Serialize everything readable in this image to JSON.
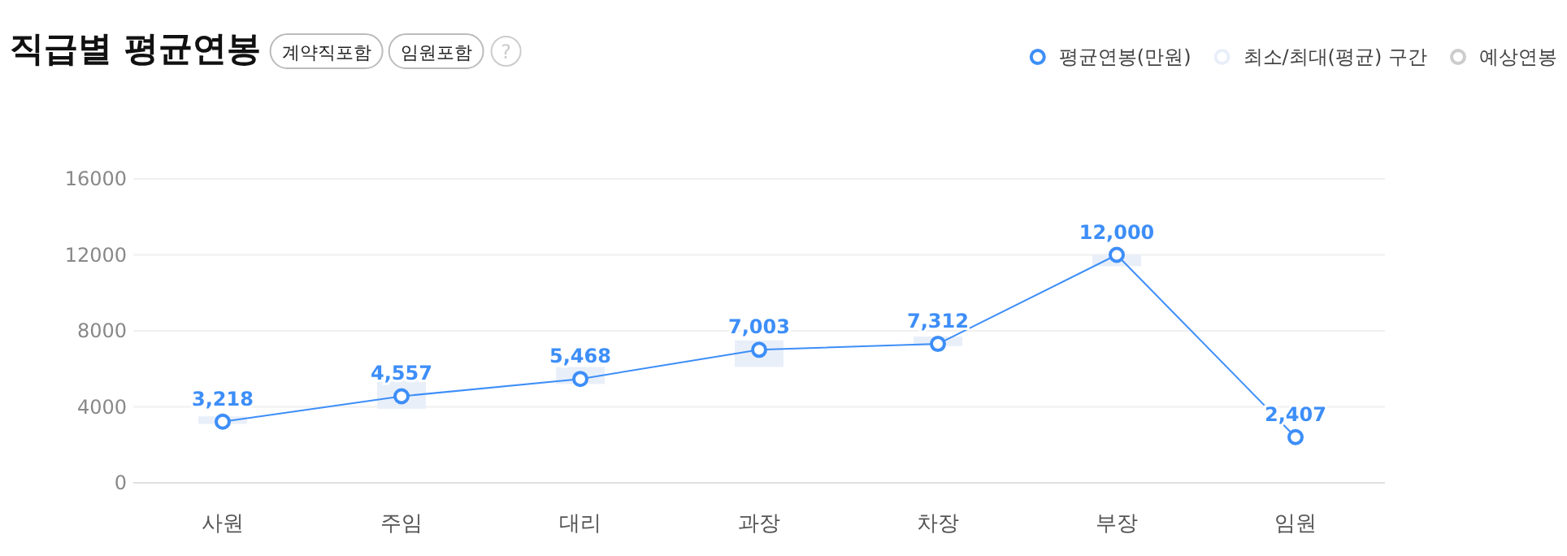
{
  "chart_data": {
    "type": "line",
    "title": "직급별 평균연봉",
    "annotations": [
      "계약직포함",
      "임원포함",
      "?"
    ],
    "categories": [
      "사원",
      "주임",
      "대리",
      "과장",
      "차장",
      "부장",
      "임원"
    ],
    "series": [
      {
        "name": "평균연봉(만원)",
        "color": "#3d8ef8",
        "values": [
          3218,
          4557,
          5468,
          7003,
          7312,
          12000,
          2407
        ],
        "value_labels": [
          "3,218",
          "4,557",
          "5,468",
          "7,003",
          "7,312",
          "12,000",
          "2,407"
        ]
      },
      {
        "name": "최소/최대(평균) 구간",
        "type": "bar",
        "color": "#e9eff9",
        "base": [
          3100,
          3900,
          5200,
          6100,
          7200,
          11400,
          null
        ],
        "values": [
          400,
          1600,
          900,
          1400,
          500,
          600,
          null
        ]
      },
      {
        "name": "예상연봉",
        "type": "line",
        "color": "#cccccc",
        "values": [
          null,
          null,
          null,
          null,
          null,
          null,
          null
        ]
      }
    ],
    "ylim": [
      0,
      16000
    ],
    "yticks": [
      0,
      4000,
      8000,
      12000,
      16000
    ],
    "grid": "y",
    "legend": "top right",
    "marker": "circle"
  }
}
